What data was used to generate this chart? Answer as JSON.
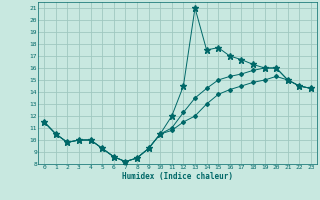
{
  "xlabel": "Humidex (Indice chaleur)",
  "xlim": [
    -0.5,
    23.5
  ],
  "ylim": [
    8,
    21.5
  ],
  "yticks": [
    8,
    9,
    10,
    11,
    12,
    13,
    14,
    15,
    16,
    17,
    18,
    19,
    20,
    21
  ],
  "xticks": [
    0,
    1,
    2,
    3,
    4,
    5,
    6,
    7,
    8,
    9,
    10,
    11,
    12,
    13,
    14,
    15,
    16,
    17,
    18,
    19,
    20,
    21,
    22,
    23
  ],
  "bg_color": "#c8e8e0",
  "grid_color": "#a0c8c0",
  "line_color": "#006868",
  "lines": [
    {
      "x": [
        0,
        1,
        2,
        3,
        4,
        5,
        6,
        7,
        8,
        9,
        10,
        11,
        12,
        13,
        14,
        15,
        16,
        17,
        18,
        19,
        20,
        21,
        22,
        23
      ],
      "y": [
        11.5,
        10.5,
        9.8,
        10.0,
        10.0,
        9.3,
        8.6,
        8.2,
        8.5,
        9.3,
        10.5,
        12.0,
        14.5,
        21.0,
        17.5,
        17.7,
        17.0,
        16.7,
        16.3,
        16.0,
        16.0,
        15.0,
        14.5,
        14.3
      ]
    },
    {
      "x": [
        0,
        1,
        2,
        3,
        4,
        5,
        6,
        7,
        8,
        9,
        10,
        11,
        12,
        13,
        14,
        15,
        16,
        17,
        18,
        19,
        20,
        21,
        22,
        23
      ],
      "y": [
        11.5,
        10.5,
        9.8,
        10.0,
        10.0,
        9.3,
        8.6,
        8.2,
        8.5,
        9.3,
        10.5,
        11.0,
        12.3,
        13.5,
        14.3,
        15.0,
        15.3,
        15.5,
        15.8,
        16.0,
        16.0,
        15.0,
        14.5,
        14.3
      ]
    },
    {
      "x": [
        0,
        1,
        2,
        3,
        4,
        5,
        6,
        7,
        8,
        9,
        10,
        11,
        12,
        13,
        14,
        15,
        16,
        17,
        18,
        19,
        20,
        21,
        22,
        23
      ],
      "y": [
        11.5,
        10.5,
        9.8,
        10.0,
        10.0,
        9.3,
        8.6,
        8.2,
        8.5,
        9.3,
        10.5,
        10.8,
        11.5,
        12.0,
        13.0,
        13.8,
        14.2,
        14.5,
        14.8,
        15.0,
        15.3,
        15.0,
        14.5,
        14.3
      ]
    }
  ]
}
